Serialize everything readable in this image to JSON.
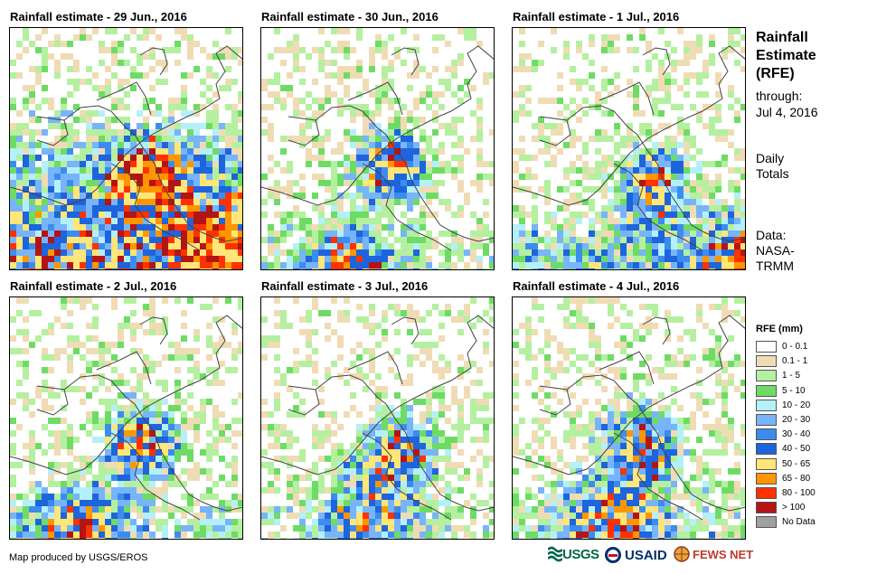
{
  "panels": [
    {
      "title": "Rainfall estimate - 29 Jun., 2016",
      "seed": 11,
      "profile": [
        [
          60,
          10
        ],
        [
          250,
          22
        ],
        [
          150,
          160
        ],
        [
          230,
          40
        ]
      ]
    },
    {
      "title": "Rainfall estimate - 30 Jun., 2016",
      "seed": 23,
      "profile": [
        [
          200,
          30
        ],
        [
          230,
          25
        ],
        [
          140,
          150
        ],
        [
          90,
          60
        ]
      ]
    },
    {
      "title": "Rainfall estimate - 1 Jul., 2016",
      "seed": 37,
      "profile": [
        [
          180,
          12
        ],
        [
          240,
          35
        ],
        [
          150,
          170
        ],
        [
          260,
          50
        ]
      ]
    },
    {
      "title": "Rainfall estimate - 2 Jul., 2016",
      "seed": 41,
      "profile": [
        [
          190,
          30
        ],
        [
          250,
          22
        ],
        [
          140,
          160
        ],
        [
          70,
          50
        ]
      ]
    },
    {
      "title": "Rainfall estimate - 3 Jul., 2016",
      "seed": 53,
      "profile": [
        [
          200,
          20
        ],
        [
          250,
          18
        ],
        [
          150,
          170
        ],
        [
          110,
          40
        ]
      ]
    },
    {
      "title": "Rainfall estimate - 4 Jul., 2016",
      "seed": 67,
      "profile": [
        [
          180,
          22
        ],
        [
          220,
          20
        ],
        [
          140,
          160
        ],
        [
          110,
          40
        ]
      ]
    }
  ],
  "sidebar": {
    "title_lines": [
      "Rainfall",
      "Estimate",
      "(RFE)"
    ],
    "through_label": "through:",
    "through_date": "Jul 4, 2016",
    "totals_lines": [
      "Daily",
      "Totals"
    ],
    "data_lines": [
      "Data:",
      "NASA-",
      "TRMM"
    ]
  },
  "legend": {
    "title": "RFE (mm)",
    "items": [
      {
        "label": "0 - 0.1",
        "color": "#ffffff"
      },
      {
        "label": "0.1 - 1",
        "color": "#f0dcb4"
      },
      {
        "label": "1 - 5",
        "color": "#b4f0a0"
      },
      {
        "label": "5 - 10",
        "color": "#6edc64"
      },
      {
        "label": "10 - 20",
        "color": "#b4f0fa"
      },
      {
        "label": "20 - 30",
        "color": "#78b4fa"
      },
      {
        "label": "30 - 40",
        "color": "#3c8cf0"
      },
      {
        "label": "40 - 50",
        "color": "#1e64dc"
      },
      {
        "label": "50 - 65",
        "color": "#ffe678"
      },
      {
        "label": "65 - 80",
        "color": "#ff9600"
      },
      {
        "label": "80 - 100",
        "color": "#ff3200"
      },
      {
        "label": "> 100",
        "color": "#b41414"
      },
      {
        "label": "No Data",
        "color": "#a0a0a0"
      }
    ]
  },
  "credit": "Map produced by USGS/EROS",
  "logos": {
    "usgs": "USGS",
    "usaid": "USAID",
    "fews": "FEWS NET"
  }
}
